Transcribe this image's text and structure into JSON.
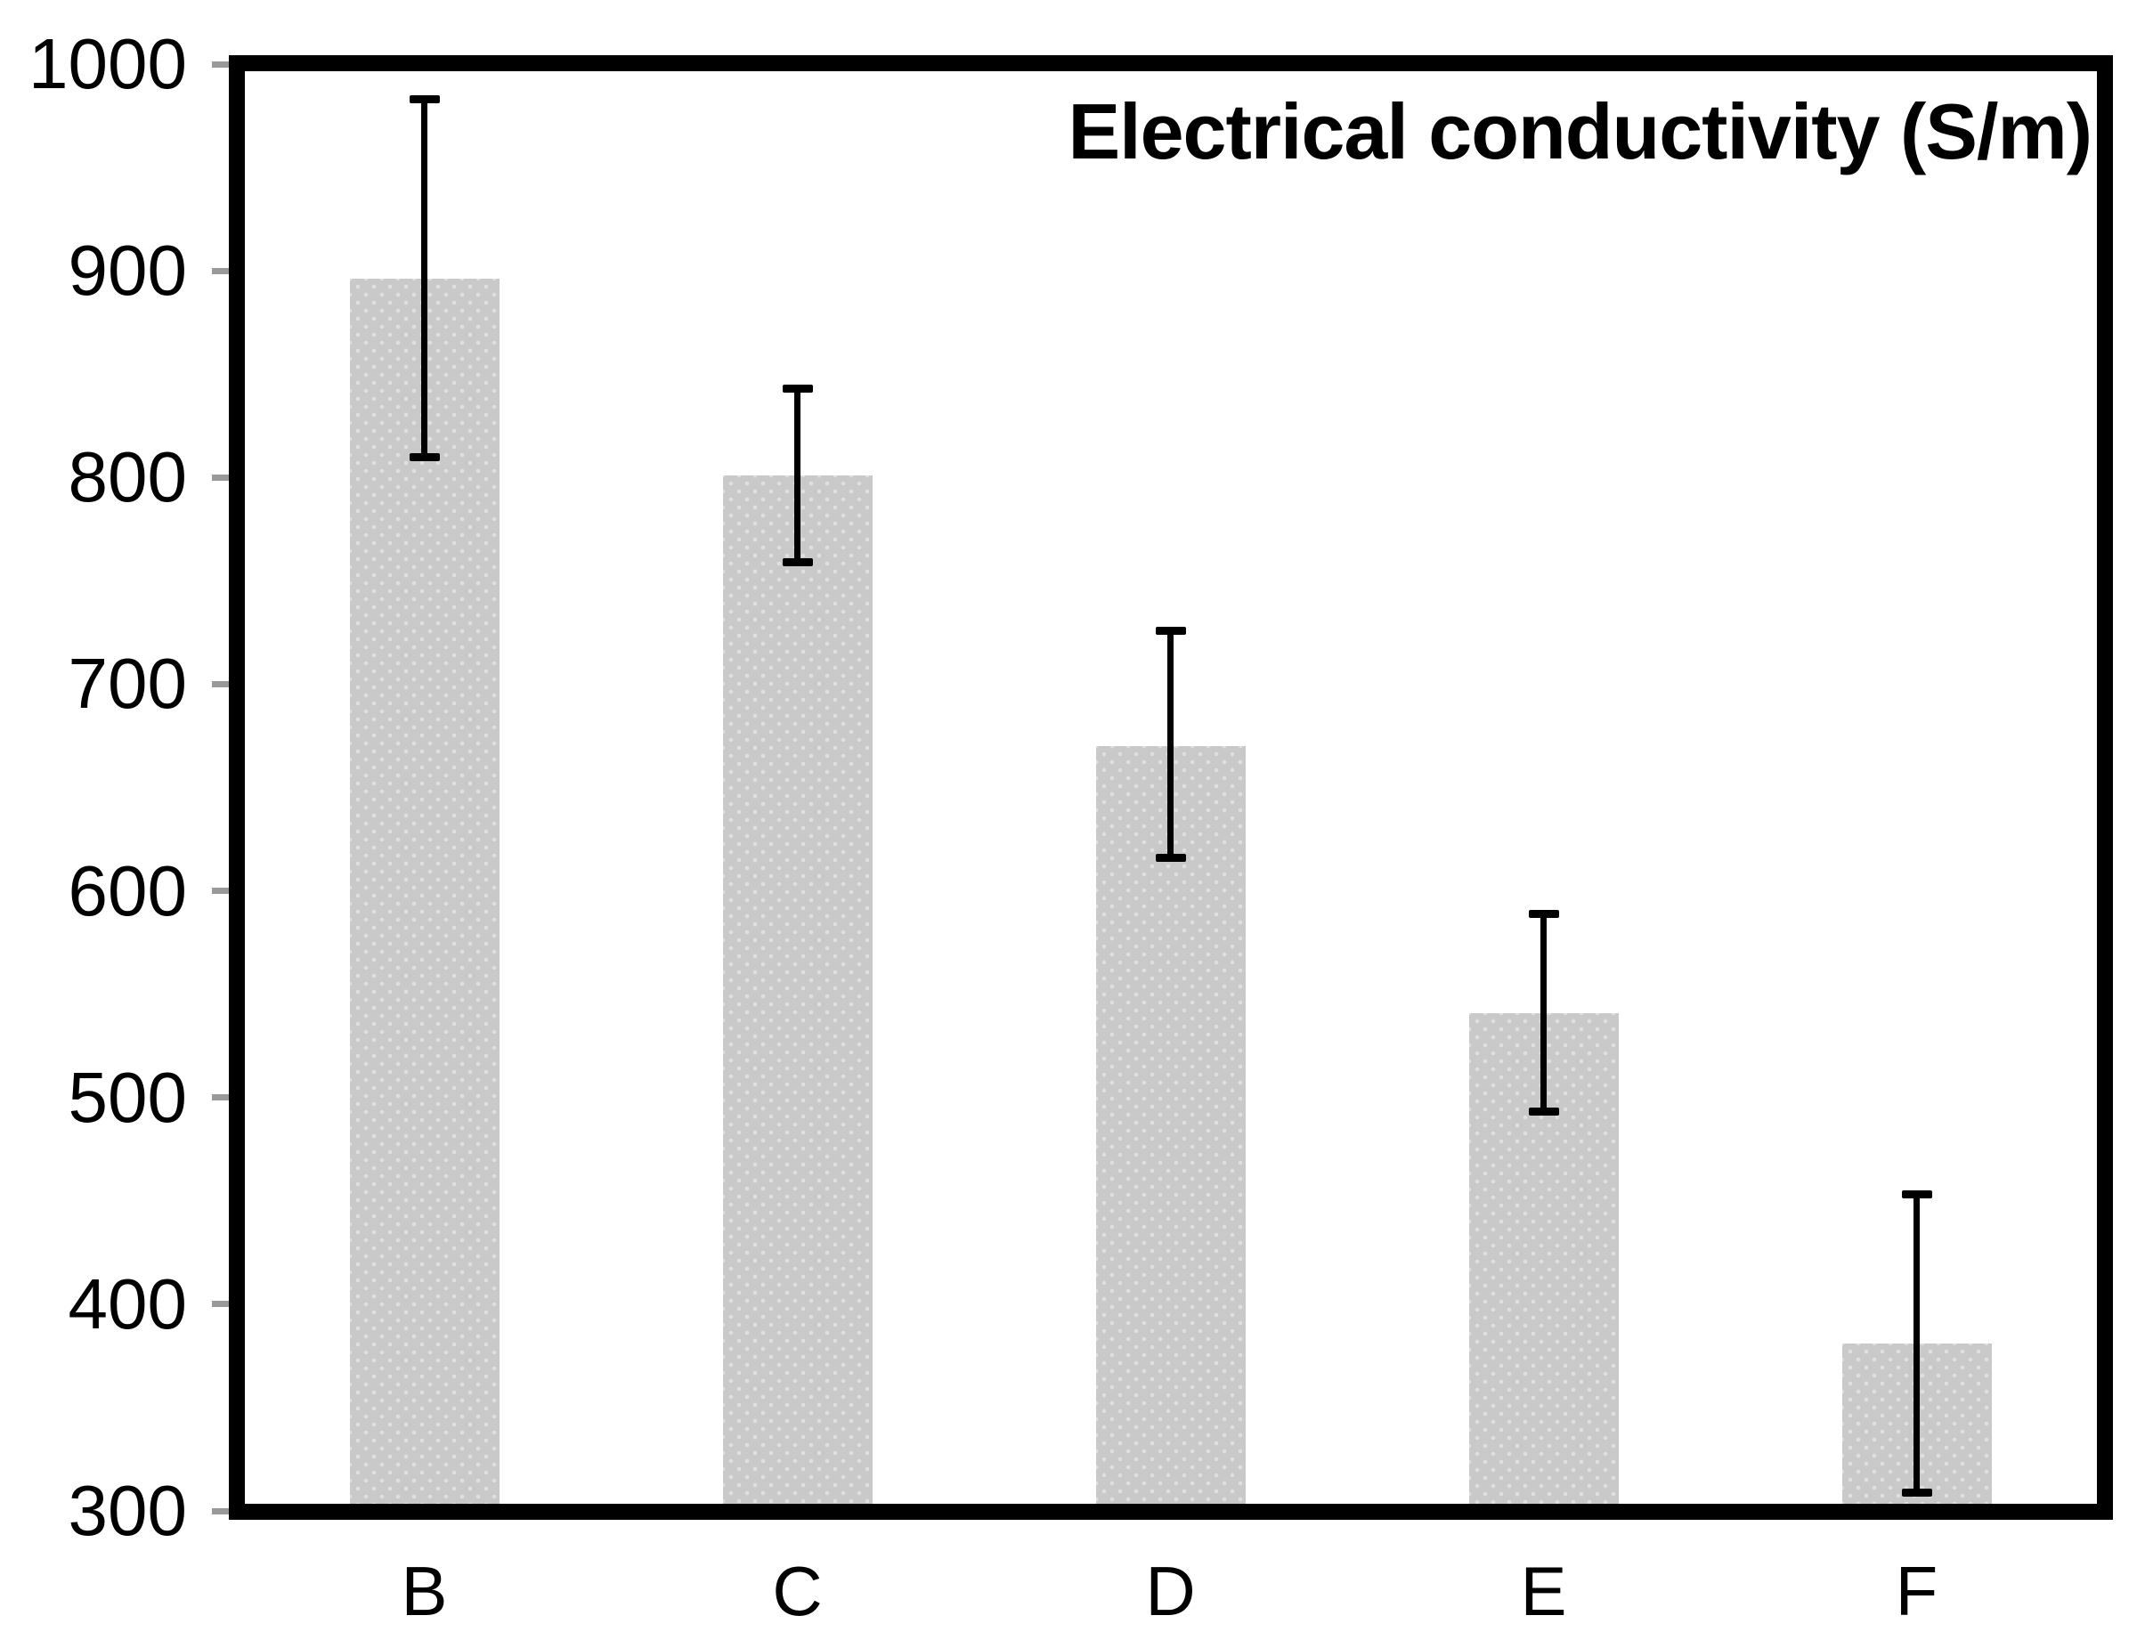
{
  "chart_data": {
    "type": "bar",
    "title": "Electrical conductivity (S/m)",
    "categories": [
      "B",
      "C",
      "D",
      "E",
      "F"
    ],
    "values": [
      896,
      801,
      670,
      541,
      381
    ],
    "error_bars": {
      "upper": [
        983,
        843,
        726,
        589,
        453
      ],
      "lower": [
        810,
        759,
        616,
        493,
        309
      ]
    },
    "ylim": [
      300,
      1000
    ],
    "y_ticks": [
      1000,
      900,
      800,
      700,
      600,
      500,
      400,
      300
    ],
    "xlabel": "",
    "ylabel": "",
    "grid": false,
    "legend": "none",
    "colors": {
      "bar_fill": "#c9c9c9",
      "error_bar": "#000000",
      "frame": "#000000",
      "tick_mark": "#999999",
      "text": "#000000",
      "background": "#ffffff"
    }
  }
}
